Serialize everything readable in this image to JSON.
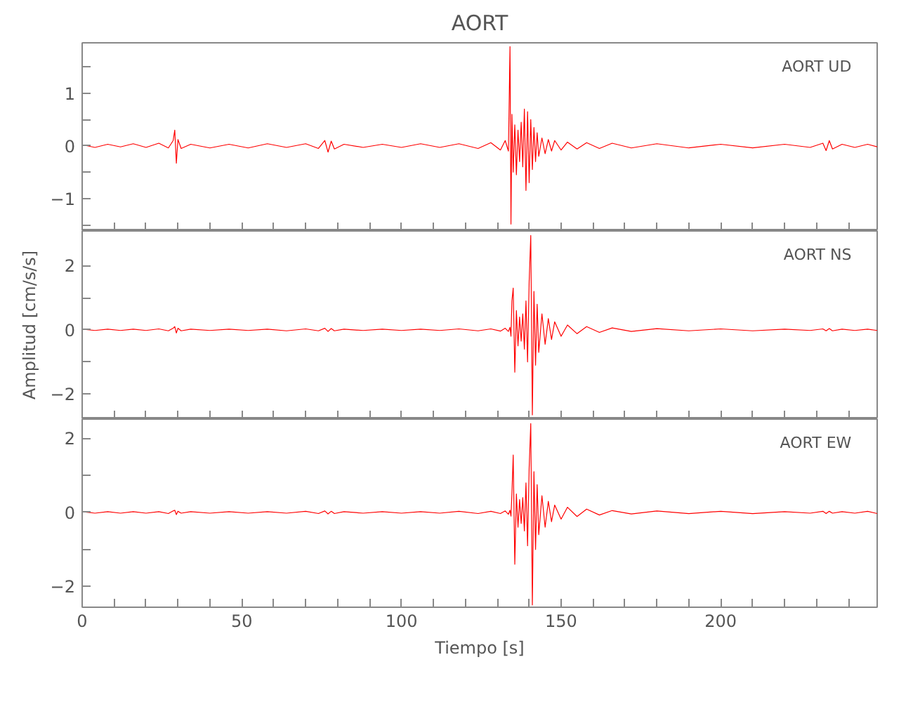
{
  "chart_data": [
    {
      "type": "line",
      "title": "AORT",
      "annotations": [
        "AORT   UD"
      ],
      "tick_labels": "y",
      "line_style": "solid",
      "marker": "none",
      "grid": false,
      "xlim": [
        0,
        249
      ],
      "xticks": [
        0,
        {
          "value": 10,
          "label": null
        },
        {
          "value": 20,
          "label": null
        },
        {
          "value": 30,
          "label": null
        },
        {
          "value": 40,
          "label": null
        },
        50,
        {
          "value": 60,
          "label": null
        },
        {
          "value": 70,
          "label": null
        },
        {
          "value": 80,
          "label": null
        },
        {
          "value": 90,
          "label": null
        },
        100,
        {
          "value": 110,
          "label": null
        },
        {
          "value": 120,
          "label": null
        },
        {
          "value": 130,
          "label": null
        },
        {
          "value": 140,
          "label": null
        },
        150,
        {
          "value": 160,
          "label": null
        },
        {
          "value": 170,
          "label": null
        },
        {
          "value": 180,
          "label": null
        },
        {
          "value": 190,
          "label": null
        },
        200,
        {
          "value": 210,
          "label": null
        },
        {
          "value": 220,
          "label": null
        },
        {
          "value": 230,
          "label": null
        },
        {
          "value": 240,
          "label": null
        }
      ],
      "ylim": [
        -1.62,
        1.96
      ],
      "yticks": [
        {
          "value": -1.5,
          "label": null
        },
        {
          "value": -1,
          "label": "−1"
        },
        {
          "value": -0.5,
          "label": null
        },
        0,
        {
          "value": 0.5,
          "label": null
        },
        1,
        {
          "value": 1.5,
          "label": null
        }
      ],
      "x": [
        0,
        4,
        8,
        12,
        16,
        20,
        24,
        27,
        28.5,
        29,
        29.5,
        30,
        31,
        34,
        40,
        46,
        52,
        58,
        64,
        70,
        74,
        76,
        77,
        78,
        79,
        82,
        88,
        94,
        100,
        106,
        112,
        118,
        124,
        128,
        131,
        132.5,
        133.5,
        134,
        134.3,
        134.6,
        135,
        135.5,
        136,
        136.5,
        137,
        137.5,
        138,
        138.5,
        139,
        139.5,
        140,
        140.5,
        141,
        141.5,
        142,
        142.5,
        143,
        144,
        145,
        146,
        147,
        148,
        150,
        152,
        155,
        158,
        162,
        166,
        172,
        180,
        190,
        200,
        210,
        220,
        228,
        232,
        233,
        234,
        235,
        238,
        242,
        246,
        249
      ],
      "series": [
        {
          "color": "#ff0000",
          "values": [
            0.02,
            -0.03,
            0.03,
            -0.02,
            0.04,
            -0.03,
            0.05,
            -0.04,
            0.1,
            0.3,
            -0.33,
            0.12,
            -0.05,
            0.03,
            -0.04,
            0.03,
            -0.04,
            0.04,
            -0.03,
            0.04,
            -0.05,
            0.1,
            -0.12,
            0.09,
            -0.06,
            0.03,
            -0.03,
            0.03,
            -0.03,
            0.04,
            -0.03,
            0.04,
            -0.05,
            0.06,
            -0.08,
            0.1,
            -0.1,
            1.89,
            -1.49,
            0.6,
            -0.5,
            0.4,
            -0.55,
            0.3,
            -0.3,
            0.45,
            -0.4,
            0.7,
            -0.85,
            0.65,
            -0.7,
            0.5,
            -0.45,
            0.35,
            -0.3,
            0.25,
            -0.2,
            0.15,
            -0.15,
            0.12,
            -0.1,
            0.1,
            -0.08,
            0.07,
            -0.06,
            0.06,
            -0.05,
            0.05,
            -0.04,
            0.04,
            -0.04,
            0.03,
            -0.04,
            0.03,
            -0.03,
            0.05,
            -0.09,
            0.1,
            -0.06,
            0.03,
            -0.03,
            0.03,
            -0.02
          ]
        }
      ]
    },
    {
      "type": "line",
      "ylabel": "Amplitud [cm/s/s]",
      "annotations": [
        "AORT   NS"
      ],
      "tick_labels": "y",
      "line_style": "solid",
      "marker": "none",
      "grid": false,
      "xlim": [
        0,
        249
      ],
      "xticks": [
        0,
        {
          "value": 10,
          "label": null
        },
        {
          "value": 20,
          "label": null
        },
        {
          "value": 30,
          "label": null
        },
        {
          "value": 40,
          "label": null
        },
        50,
        {
          "value": 60,
          "label": null
        },
        {
          "value": 70,
          "label": null
        },
        {
          "value": 80,
          "label": null
        },
        {
          "value": 90,
          "label": null
        },
        100,
        {
          "value": 110,
          "label": null
        },
        {
          "value": 120,
          "label": null
        },
        {
          "value": 130,
          "label": null
        },
        {
          "value": 140,
          "label": null
        },
        150,
        {
          "value": 160,
          "label": null
        },
        {
          "value": 170,
          "label": null
        },
        {
          "value": 180,
          "label": null
        },
        {
          "value": 190,
          "label": null
        },
        200,
        {
          "value": 210,
          "label": null
        },
        {
          "value": 220,
          "label": null
        },
        {
          "value": 230,
          "label": null
        },
        {
          "value": 240,
          "label": null
        }
      ],
      "ylim": [
        -2.78,
        3.08
      ],
      "yticks": [
        {
          "value": -2,
          "label": "−2"
        },
        {
          "value": -1,
          "label": null
        },
        0,
        {
          "value": 1,
          "label": null
        },
        2
      ],
      "x": [
        0,
        4,
        8,
        12,
        16,
        20,
        24,
        27,
        28.5,
        29,
        29.5,
        30,
        31,
        34,
        40,
        46,
        52,
        58,
        64,
        70,
        74,
        76,
        77,
        78,
        79,
        82,
        88,
        94,
        100,
        106,
        112,
        118,
        124,
        128,
        131,
        132.5,
        133.5,
        134,
        134.3,
        134.6,
        135,
        135.5,
        136,
        136.5,
        137,
        137.5,
        138,
        138.5,
        139,
        139.5,
        140,
        140.5,
        141,
        141.5,
        142,
        142.5,
        143,
        144,
        145,
        146,
        147,
        148,
        150,
        152,
        155,
        158,
        162,
        166,
        172,
        180,
        190,
        200,
        210,
        220,
        228,
        232,
        233,
        234,
        235,
        238,
        242,
        246,
        249
      ],
      "series": [
        {
          "color": "#ff0000",
          "values": [
            0.02,
            -0.02,
            0.02,
            -0.02,
            0.02,
            -0.02,
            0.03,
            -0.03,
            0.05,
            0.1,
            -0.1,
            0.05,
            -0.03,
            0.02,
            -0.02,
            0.02,
            -0.02,
            0.02,
            -0.03,
            0.03,
            -0.03,
            0.05,
            -0.05,
            0.04,
            -0.03,
            0.02,
            -0.02,
            0.02,
            -0.02,
            0.02,
            -0.02,
            0.03,
            -0.03,
            0.03,
            -0.04,
            0.05,
            -0.05,
            0.08,
            -0.2,
            0.9,
            1.3,
            -1.32,
            0.6,
            -0.5,
            0.4,
            -0.35,
            0.5,
            -0.6,
            0.9,
            -1.0,
            1.5,
            2.94,
            -2.65,
            1.2,
            -1.1,
            0.8,
            -0.7,
            0.5,
            -0.45,
            0.35,
            -0.3,
            0.25,
            -0.2,
            0.15,
            -0.12,
            0.1,
            -0.08,
            0.06,
            -0.05,
            0.04,
            -0.03,
            0.03,
            -0.03,
            0.02,
            -0.02,
            0.03,
            -0.03,
            0.04,
            -0.03,
            0.02,
            -0.02,
            0.02,
            -0.02
          ]
        }
      ]
    },
    {
      "type": "line",
      "xlabel": "Tiempo [s]",
      "annotations": [
        "AORT   EW"
      ],
      "line_style": "solid",
      "marker": "none",
      "grid": false,
      "xlim": [
        0,
        249
      ],
      "xticks": [
        0,
        {
          "value": 10,
          "label": null
        },
        {
          "value": 20,
          "label": null
        },
        {
          "value": 30,
          "label": null
        },
        {
          "value": 40,
          "label": null
        },
        50,
        {
          "value": 60,
          "label": null
        },
        {
          "value": 70,
          "label": null
        },
        {
          "value": 80,
          "label": null
        },
        {
          "value": 90,
          "label": null
        },
        100,
        {
          "value": 110,
          "label": null
        },
        {
          "value": 120,
          "label": null
        },
        {
          "value": 130,
          "label": null
        },
        {
          "value": 140,
          "label": null
        },
        150,
        {
          "value": 160,
          "label": null
        },
        {
          "value": 170,
          "label": null
        },
        {
          "value": 180,
          "label": null
        },
        {
          "value": 190,
          "label": null
        },
        200,
        {
          "value": 210,
          "label": null
        },
        {
          "value": 220,
          "label": null
        },
        {
          "value": 230,
          "label": null
        },
        {
          "value": 240,
          "label": null
        }
      ],
      "ylim": [
        -2.56,
        2.52
      ],
      "yticks": [
        {
          "value": -2,
          "label": "−2"
        },
        {
          "value": -1,
          "label": null
        },
        0,
        {
          "value": 1,
          "label": null
        },
        2
      ],
      "x": [
        0,
        4,
        8,
        12,
        16,
        20,
        24,
        27,
        28.5,
        29,
        29.5,
        30,
        31,
        34,
        40,
        46,
        52,
        58,
        64,
        70,
        74,
        76,
        77,
        78,
        79,
        82,
        88,
        94,
        100,
        106,
        112,
        118,
        124,
        128,
        131,
        132.5,
        133.5,
        134,
        134.3,
        134.6,
        135,
        135.5,
        136,
        136.5,
        137,
        137.5,
        138,
        138.5,
        139,
        139.5,
        140,
        140.5,
        141,
        141.5,
        142,
        142.5,
        143,
        144,
        145,
        146,
        147,
        148,
        150,
        152,
        155,
        158,
        162,
        166,
        172,
        180,
        190,
        200,
        210,
        220,
        228,
        232,
        233,
        234,
        235,
        238,
        242,
        246,
        249
      ],
      "series": [
        {
          "color": "#ff0000",
          "values": [
            0.02,
            -0.02,
            0.02,
            -0.02,
            0.02,
            -0.02,
            0.02,
            -0.03,
            0.04,
            0.06,
            -0.06,
            0.03,
            -0.02,
            0.02,
            -0.02,
            0.02,
            -0.02,
            0.02,
            -0.02,
            0.03,
            -0.03,
            0.04,
            -0.04,
            0.03,
            -0.03,
            0.02,
            -0.02,
            0.02,
            -0.02,
            0.02,
            -0.02,
            0.03,
            -0.03,
            0.03,
            -0.03,
            0.04,
            -0.05,
            0.06,
            -0.1,
            0.5,
            1.55,
            -1.4,
            0.5,
            -0.4,
            0.35,
            -0.3,
            0.4,
            -0.5,
            0.8,
            -0.9,
            1.2,
            2.4,
            -2.5,
            1.1,
            -1.0,
            0.75,
            -0.6,
            0.45,
            -0.4,
            0.3,
            -0.25,
            0.2,
            -0.18,
            0.14,
            -0.11,
            0.09,
            -0.07,
            0.05,
            -0.04,
            0.04,
            -0.03,
            0.03,
            -0.03,
            0.02,
            -0.02,
            0.03,
            -0.03,
            0.03,
            -0.02,
            0.02,
            -0.02,
            0.03,
            -0.03
          ]
        }
      ]
    }
  ]
}
